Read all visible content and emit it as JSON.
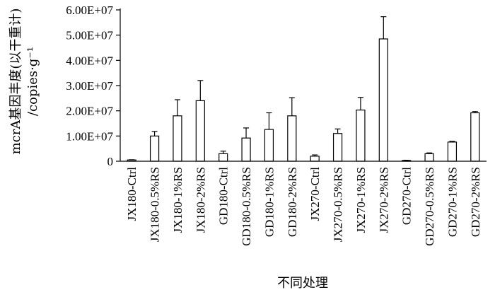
{
  "chart_data": {
    "type": "bar",
    "title": "",
    "xlabel": "不同处理",
    "ylabel_main": "mcrA基因丰度(以干重计)",
    "ylabel_unit": "/copies·g⁻¹",
    "ylim": [
      0,
      60000000
    ],
    "y_ticks": [
      0,
      10000000,
      20000000,
      30000000,
      40000000,
      50000000,
      60000000
    ],
    "y_tick_labels": [
      "0",
      "1.00E+07",
      "2.00E+07",
      "3.00E+07",
      "4.00E+07",
      "5.00E+07",
      "6.00E+07"
    ],
    "grid": false,
    "categories": [
      "JX180-Ctrl",
      "JX180-0.5%RS",
      "JX180-1%RS",
      "JX180-2%RS",
      "GD180-Ctrl",
      "GD180-0.5%RS",
      "GD180-1%RS",
      "GD180-2%RS",
      "JX270-Ctrl",
      "JX270-0.5%RS",
      "JX270-1%RS",
      "JX270-2%RS",
      "GD270-Ctrl",
      "GD270-0.5%RS",
      "GD270-1%RS",
      "GD270-2%RS"
    ],
    "values": [
      500000,
      10000000,
      18000000,
      24000000,
      3000000,
      9200000,
      12600000,
      18000000,
      2000000,
      11000000,
      20300000,
      48500000,
      300000,
      3000000,
      7600000,
      19200000
    ],
    "errors": [
      100000,
      1800000,
      6400000,
      8000000,
      1000000,
      4000000,
      6600000,
      7200000,
      500000,
      1800000,
      5000000,
      8800000,
      100000,
      300000,
      300000,
      500000
    ]
  }
}
